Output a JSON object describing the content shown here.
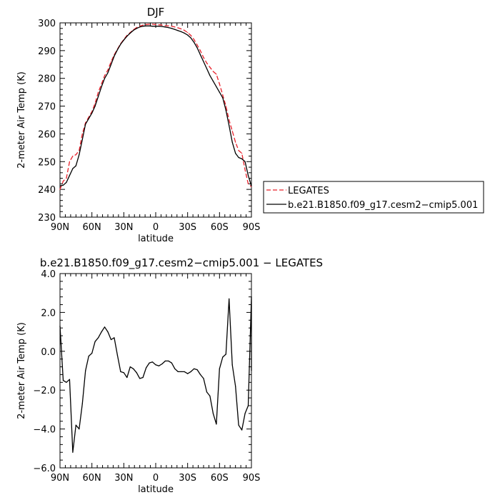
{
  "chart_data": [
    {
      "type": "line",
      "title": "DJF",
      "xlabel": "latitude",
      "ylabel": "2-meter Air Temp (K)",
      "xlim": [
        90,
        -90
      ],
      "ylim": [
        230,
        300
      ],
      "x_tick_values": [
        90,
        60,
        30,
        0,
        -30,
        -60,
        -90
      ],
      "x_tick_labels": [
        "90N",
        "60N",
        "30N",
        "0",
        "30S",
        "60S",
        "90S"
      ],
      "y_tick_values": [
        230,
        240,
        250,
        260,
        270,
        280,
        290,
        300
      ],
      "y_tick_labels": [
        "230",
        "240",
        "250",
        "260",
        "270",
        "280",
        "290",
        "300"
      ],
      "grid": false,
      "legend_placement": "right",
      "series": [
        {
          "name": "LEGATES",
          "color": "#e8202a",
          "dash": "dashed",
          "points": [
            [
              90,
              240.0
            ],
            [
              87,
              243.0
            ],
            [
              84,
              244.0
            ],
            [
              81,
              250.0
            ],
            [
              78,
              252.0
            ],
            [
              75,
              252.5
            ],
            [
              72,
              254.0
            ],
            [
              69,
              260.0
            ],
            [
              66,
              264.0
            ],
            [
              63,
              266.0
            ],
            [
              60,
              268.0
            ],
            [
              57,
              271.0
            ],
            [
              54,
              275.0
            ],
            [
              51,
              278.0
            ],
            [
              48,
              281.0
            ],
            [
              45,
              283.0
            ],
            [
              42,
              286.0
            ],
            [
              39,
              288.5
            ],
            [
              36,
              290.5
            ],
            [
              33,
              292.5
            ],
            [
              30,
              294.0
            ],
            [
              27,
              295.5
            ],
            [
              24,
              296.5
            ],
            [
              21,
              297.5
            ],
            [
              18,
              298.3
            ],
            [
              15,
              298.8
            ],
            [
              12,
              299.2
            ],
            [
              9,
              299.4
            ],
            [
              6,
              299.5
            ],
            [
              3,
              299.5
            ],
            [
              0,
              299.4
            ],
            [
              -3,
              299.3
            ],
            [
              -6,
              299.2
            ],
            [
              -9,
              299.0
            ],
            [
              -12,
              298.9
            ],
            [
              -15,
              298.8
            ],
            [
              -18,
              298.5
            ],
            [
              -21,
              298.2
            ],
            [
              -24,
              297.8
            ],
            [
              -27,
              297.3
            ],
            [
              -30,
              296.5
            ],
            [
              -33,
              295.5
            ],
            [
              -36,
              294.0
            ],
            [
              -39,
              292.0
            ],
            [
              -42,
              290.0
            ],
            [
              -45,
              287.5
            ],
            [
              -48,
              285.5
            ],
            [
              -51,
              284.0
            ],
            [
              -54,
              282.5
            ],
            [
              -57,
              281.5
            ],
            [
              -60,
              278.0
            ],
            [
              -63,
              274.0
            ],
            [
              -66,
              270.0
            ],
            [
              -69,
              265.0
            ],
            [
              -72,
              261.0
            ],
            [
              -75,
              257.0
            ],
            [
              -78,
              254.0
            ],
            [
              -81,
              253.0
            ],
            [
              -84,
              247.0
            ],
            [
              -87,
              242.0
            ],
            [
              -90,
              241.0
            ]
          ]
        },
        {
          "name": "b.e21.B1850.f09_g17.cesm2−cmip5.001",
          "color": "#000000",
          "dash": "solid",
          "points": [
            [
              90,
              241.3
            ],
            [
              87,
              241.5
            ],
            [
              84,
              242.5
            ],
            [
              81,
              245.0
            ],
            [
              78,
              247.5
            ],
            [
              75,
              248.5
            ],
            [
              72,
              252.5
            ],
            [
              69,
              258.0
            ],
            [
              66,
              263.5
            ],
            [
              63,
              265.5
            ],
            [
              60,
              267.5
            ],
            [
              57,
              270.0
            ],
            [
              54,
              273.5
            ],
            [
              51,
              277.0
            ],
            [
              48,
              280.0
            ],
            [
              45,
              282.0
            ],
            [
              42,
              285.0
            ],
            [
              39,
              288.0
            ],
            [
              36,
              290.3
            ],
            [
              33,
              292.3
            ],
            [
              30,
              293.8
            ],
            [
              27,
              295.2
            ],
            [
              24,
              296.3
            ],
            [
              21,
              297.3
            ],
            [
              18,
              298.0
            ],
            [
              15,
              298.5
            ],
            [
              12,
              298.8
            ],
            [
              9,
              298.9
            ],
            [
              6,
              298.9
            ],
            [
              3,
              298.8
            ],
            [
              0,
              298.8
            ],
            [
              -3,
              298.8
            ],
            [
              -6,
              298.7
            ],
            [
              -9,
              298.5
            ],
            [
              -12,
              298.3
            ],
            [
              -15,
              298.0
            ],
            [
              -18,
              297.6
            ],
            [
              -21,
              297.2
            ],
            [
              -24,
              296.8
            ],
            [
              -27,
              296.3
            ],
            [
              -30,
              295.6
            ],
            [
              -33,
              294.6
            ],
            [
              -36,
              293.0
            ],
            [
              -39,
              291.0
            ],
            [
              -42,
              288.5
            ],
            [
              -45,
              286.0
            ],
            [
              -48,
              283.5
            ],
            [
              -51,
              281.0
            ],
            [
              -54,
              279.0
            ],
            [
              -57,
              277.0
            ],
            [
              -60,
              275.0
            ],
            [
              -63,
              273.0
            ],
            [
              -66,
              268.5
            ],
            [
              -69,
              263.0
            ],
            [
              -72,
              257.0
            ],
            [
              -75,
              253.0
            ],
            [
              -78,
              251.5
            ],
            [
              -81,
              251.0
            ],
            [
              -84,
              250.0
            ],
            [
              -87,
              245.0
            ],
            [
              -90,
              241.2
            ]
          ]
        }
      ]
    },
    {
      "type": "line",
      "title": "b.e21.B1850.f09_g17.cesm2−cmip5.001 − LEGATES",
      "xlabel": "latitude",
      "ylabel": "2-meter Air Temp (K)",
      "xlim": [
        90,
        -90
      ],
      "ylim": [
        -6.0,
        4.0
      ],
      "x_tick_values": [
        90,
        60,
        30,
        0,
        -30,
        -60,
        -90
      ],
      "x_tick_labels": [
        "90N",
        "60N",
        "30N",
        "0",
        "30S",
        "60S",
        "90S"
      ],
      "y_tick_values": [
        -6,
        -4,
        -2,
        0,
        2,
        4
      ],
      "y_tick_labels": [
        "−6.0",
        "−4.0",
        "−2.0",
        "0.0",
        "2.0",
        "4.0"
      ],
      "grid": false,
      "series": [
        {
          "name": "",
          "color": "#000000",
          "dash": "solid",
          "points": [
            [
              90,
              1.3
            ],
            [
              87,
              -1.5
            ],
            [
              84,
              -1.6
            ],
            [
              81,
              -1.45
            ],
            [
              78,
              -5.2
            ],
            [
              75,
              -3.8
            ],
            [
              72,
              -4.0
            ],
            [
              69,
              -2.7
            ],
            [
              66,
              -1.0
            ],
            [
              63,
              -0.25
            ],
            [
              60,
              -0.1
            ],
            [
              57,
              0.5
            ],
            [
              54,
              0.7
            ],
            [
              51,
              1.0
            ],
            [
              48,
              1.25
            ],
            [
              45,
              1.0
            ],
            [
              42,
              0.6
            ],
            [
              39,
              0.7
            ],
            [
              36,
              -0.2
            ],
            [
              33,
              -1.05
            ],
            [
              30,
              -1.1
            ],
            [
              27,
              -1.35
            ],
            [
              24,
              -0.8
            ],
            [
              21,
              -0.9
            ],
            [
              18,
              -1.1
            ],
            [
              15,
              -1.4
            ],
            [
              12,
              -1.35
            ],
            [
              9,
              -0.85
            ],
            [
              6,
              -0.6
            ],
            [
              3,
              -0.55
            ],
            [
              0,
              -0.7
            ],
            [
              -3,
              -0.75
            ],
            [
              -6,
              -0.65
            ],
            [
              -9,
              -0.5
            ],
            [
              -12,
              -0.5
            ],
            [
              -15,
              -0.6
            ],
            [
              -18,
              -0.9
            ],
            [
              -21,
              -1.05
            ],
            [
              -24,
              -1.05
            ],
            [
              -27,
              -1.05
            ],
            [
              -30,
              -1.15
            ],
            [
              -33,
              -1.05
            ],
            [
              -36,
              -0.9
            ],
            [
              -39,
              -0.95
            ],
            [
              -42,
              -1.2
            ],
            [
              -45,
              -1.4
            ],
            [
              -48,
              -2.1
            ],
            [
              -51,
              -2.3
            ],
            [
              -54,
              -3.2
            ],
            [
              -57,
              -3.75
            ],
            [
              -60,
              -0.9
            ],
            [
              -63,
              -0.3
            ],
            [
              -66,
              -0.15
            ],
            [
              -69,
              2.7
            ],
            [
              -72,
              -0.7
            ],
            [
              -75,
              -1.8
            ],
            [
              -78,
              -3.8
            ],
            [
              -81,
              -4.05
            ],
            [
              -84,
              -3.2
            ],
            [
              -87,
              -2.8
            ],
            [
              -90,
              2.8
            ],
            [
              -93,
              -1.0
            ]
          ]
        }
      ]
    }
  ]
}
